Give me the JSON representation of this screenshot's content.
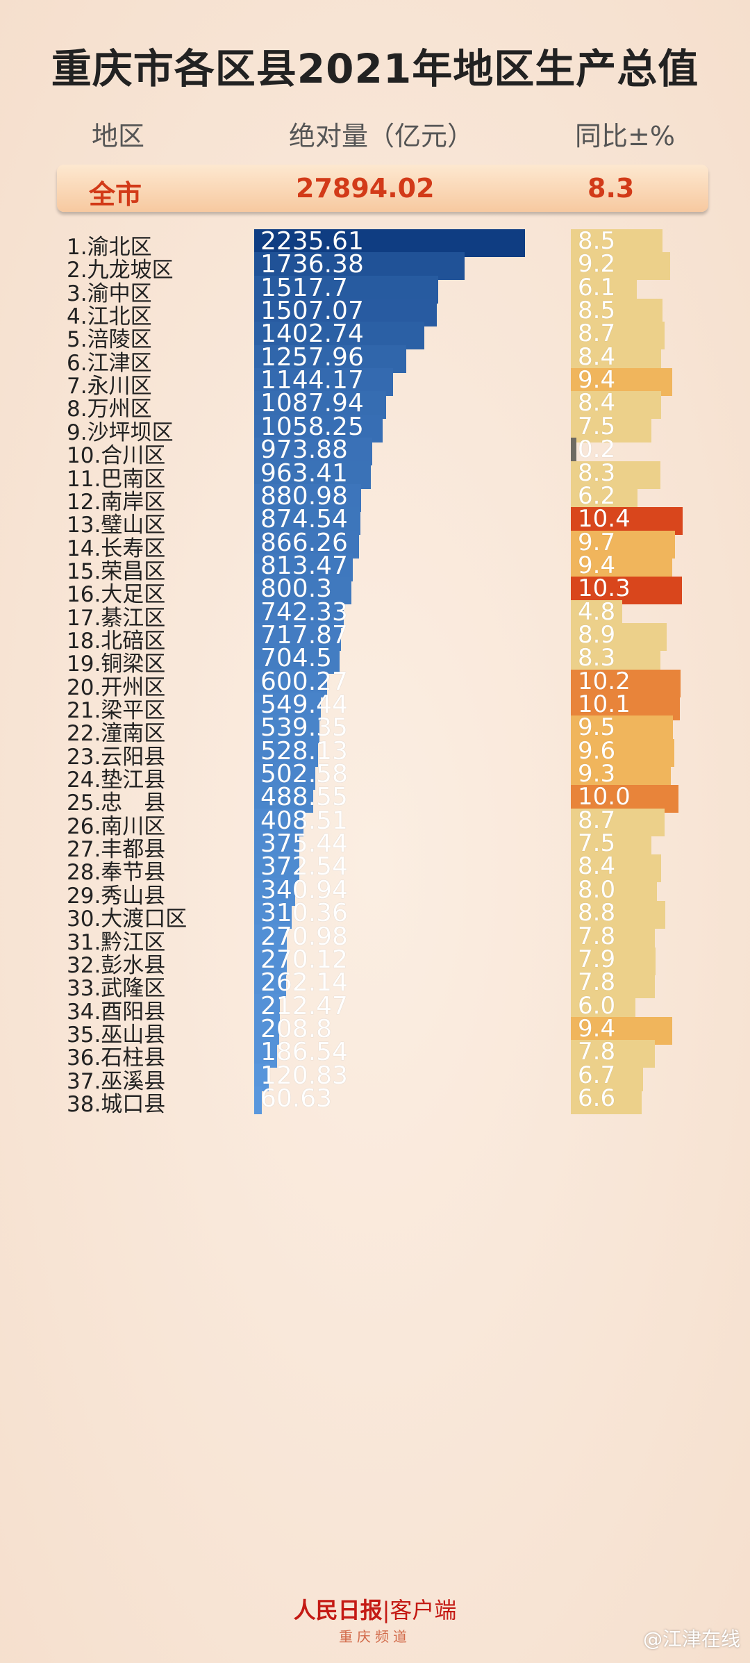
{
  "title": "重庆市各区县2021年地区生产总值",
  "headers": {
    "region": "地区",
    "absolute": "绝对量（亿元）",
    "growth": "同比±%"
  },
  "summary": {
    "label": "全市",
    "gdp": "27894.02",
    "growth": "8.3"
  },
  "colors": {
    "bar_dark": "#0f3d82",
    "bar_light": "#5b9ae0",
    "growth_low": "#ecd08a",
    "growth_mid": "#f0b55c",
    "growth_high": "#d9461c"
  },
  "chart_data": {
    "type": "table",
    "columns": [
      "地区",
      "绝对量（亿元）",
      "同比±%"
    ],
    "rows": [
      {
        "label": "1.渝北区",
        "gdp": "2235.61",
        "growth": "8.5"
      },
      {
        "label": "2.九龙坡区",
        "gdp": "1736.38",
        "growth": "9.2"
      },
      {
        "label": "3.渝中区",
        "gdp": "1517.7",
        "growth": "6.1"
      },
      {
        "label": "4.江北区",
        "gdp": "1507.07",
        "growth": "8.5"
      },
      {
        "label": "5.涪陵区",
        "gdp": "1402.74",
        "growth": "8.7"
      },
      {
        "label": "6.江津区",
        "gdp": "1257.96",
        "growth": "8.4"
      },
      {
        "label": "7.永川区",
        "gdp": "1144.17",
        "growth": "9.4"
      },
      {
        "label": "8.万州区",
        "gdp": "1087.94",
        "growth": "8.4"
      },
      {
        "label": "9.沙坪坝区",
        "gdp": "1058.25",
        "growth": "7.5"
      },
      {
        "label": "10.合川区",
        "gdp": "973.88",
        "growth": "0.2"
      },
      {
        "label": "11.巴南区",
        "gdp": "963.41",
        "growth": "8.3"
      },
      {
        "label": "12.南岸区",
        "gdp": "880.98",
        "growth": "6.2"
      },
      {
        "label": "13.璧山区",
        "gdp": "874.54",
        "growth": "10.4"
      },
      {
        "label": "14.长寿区",
        "gdp": "866.26",
        "growth": "9.7"
      },
      {
        "label": "15.荣昌区",
        "gdp": "813.47",
        "growth": "9.4"
      },
      {
        "label": "16.大足区",
        "gdp": "800.3",
        "growth": "10.3"
      },
      {
        "label": "17.綦江区",
        "gdp": "742.33",
        "growth": "4.8"
      },
      {
        "label": "18.北碚区",
        "gdp": "717.87",
        "growth": "8.9"
      },
      {
        "label": "19.铜梁区",
        "gdp": "704.5",
        "growth": "8.3"
      },
      {
        "label": "20.开州区",
        "gdp": "600.27",
        "growth": "10.2"
      },
      {
        "label": "21.梁平区",
        "gdp": "549.44",
        "growth": "10.1"
      },
      {
        "label": "22.潼南区",
        "gdp": "539.35",
        "growth": "9.5"
      },
      {
        "label": "23.云阳县",
        "gdp": "528.13",
        "growth": "9.6"
      },
      {
        "label": "24.垫江县",
        "gdp": "502.58",
        "growth": "9.3"
      },
      {
        "label": "25.忠　县",
        "gdp": "488.55",
        "growth": "10.0"
      },
      {
        "label": "26.南川区",
        "gdp": "408.51",
        "growth": "8.7"
      },
      {
        "label": "27.丰都县",
        "gdp": "375.44",
        "growth": "7.5"
      },
      {
        "label": "28.奉节县",
        "gdp": "372.54",
        "growth": "8.4"
      },
      {
        "label": "29.秀山县",
        "gdp": "340.94",
        "growth": "8.0"
      },
      {
        "label": "30.大渡口区",
        "gdp": "310.36",
        "growth": "8.8"
      },
      {
        "label": "31.黔江区",
        "gdp": "270.98",
        "growth": "7.8"
      },
      {
        "label": "32.彭水县",
        "gdp": "270.12",
        "growth": "7.9"
      },
      {
        "label": "33.武隆区",
        "gdp": "262.14",
        "growth": "7.8"
      },
      {
        "label": "34.酉阳县",
        "gdp": "212.47",
        "growth": "6.0"
      },
      {
        "label": "35.巫山县",
        "gdp": "208.8",
        "growth": "9.4"
      },
      {
        "label": "36.石柱县",
        "gdp": "186.54",
        "growth": "7.8"
      },
      {
        "label": "37.巫溪县",
        "gdp": "120.83",
        "growth": "6.7"
      },
      {
        "label": "38.城口县",
        "gdp": "60.63",
        "growth": "6.6"
      }
    ]
  },
  "brand": {
    "name": "人民日报",
    "client": "客户端",
    "channel": "重庆频道"
  },
  "watermark": "@江津在线"
}
